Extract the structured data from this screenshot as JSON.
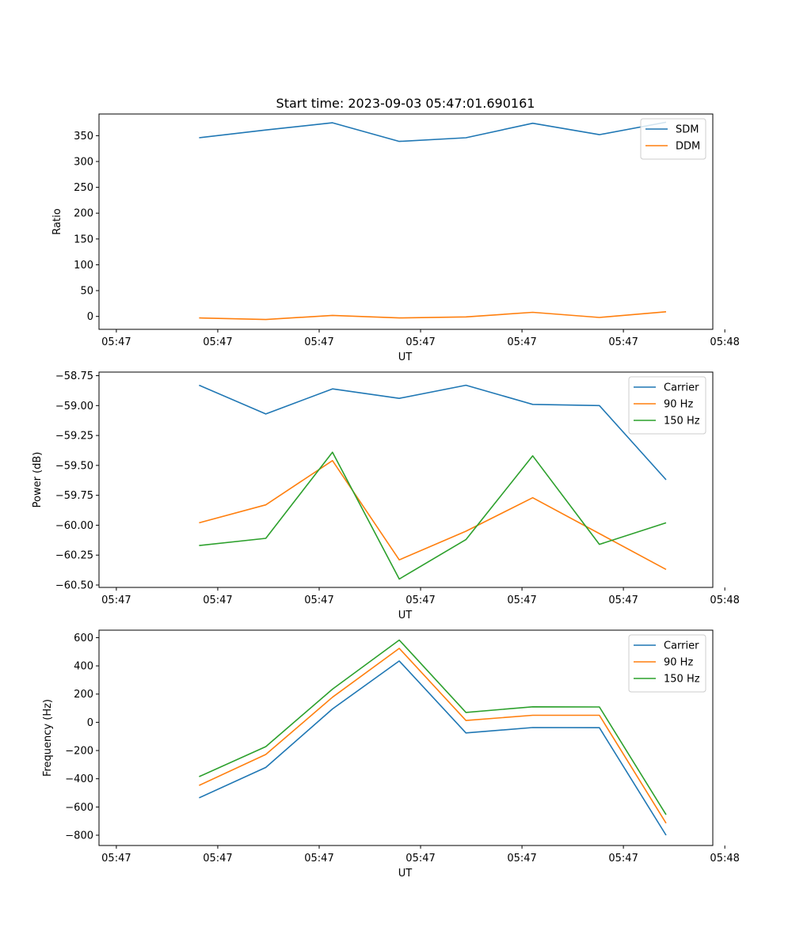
{
  "title": "Start time: 2023-09-03 05:47:01.690161",
  "chart_data": [
    {
      "type": "line",
      "title": "Start time: 2023-09-03 05:47:01.690161",
      "xlabel": "UT",
      "ylabel": "Ratio",
      "ylim": [
        -25,
        392
      ],
      "yticks": [
        0,
        50,
        100,
        150,
        200,
        250,
        300,
        350
      ],
      "ytick_labels": [
        "0",
        "50",
        "100",
        "150",
        "200",
        "250",
        "300",
        "350"
      ],
      "xlim": [
        -1.5,
        7.7
      ],
      "xticks": [
        -1.24,
        0.28,
        1.8,
        3.32,
        4.84,
        6.36,
        7.88
      ],
      "xtick_labels": [
        "05:47",
        "05:47",
        "05:47",
        "05:47",
        "05:47",
        "05:47",
        "05:48"
      ],
      "x": [
        0,
        1,
        2,
        3,
        4,
        5,
        6,
        7
      ],
      "legend_position": "top-right",
      "series": [
        {
          "name": "SDM",
          "color": "#1f77b4",
          "values": [
            346,
            361,
            375,
            339,
            346,
            374,
            352,
            376
          ]
        },
        {
          "name": "DDM",
          "color": "#ff7f0e",
          "values": [
            -3,
            -6,
            2,
            -3,
            -1,
            8,
            -2,
            9
          ]
        }
      ]
    },
    {
      "type": "line",
      "title": "",
      "xlabel": "UT",
      "ylabel": "Power (dB)",
      "ylim": [
        -60.52,
        -58.72
      ],
      "yticks": [
        -60.5,
        -60.25,
        -60.0,
        -59.75,
        -59.5,
        -59.25,
        -59.0,
        -58.75
      ],
      "ytick_labels": [
        "−60.50",
        "−60.25",
        "−60.00",
        "−59.75",
        "−59.50",
        "−59.25",
        "−59.00",
        "−58.75"
      ],
      "xlim": [
        -1.5,
        7.7
      ],
      "xticks": [
        -1.24,
        0.28,
        1.8,
        3.32,
        4.84,
        6.36,
        7.88
      ],
      "xtick_labels": [
        "05:47",
        "05:47",
        "05:47",
        "05:47",
        "05:47",
        "05:47",
        "05:48"
      ],
      "x": [
        0,
        1,
        2,
        3,
        4,
        5,
        6,
        7
      ],
      "legend_position": "top-right",
      "series": [
        {
          "name": "Carrier",
          "color": "#1f77b4",
          "values": [
            -58.83,
            -59.07,
            -58.86,
            -58.94,
            -58.83,
            -58.99,
            -59.0,
            -59.62
          ]
        },
        {
          "name": "90 Hz",
          "color": "#ff7f0e",
          "values": [
            -59.98,
            -59.83,
            -59.46,
            -60.29,
            -60.05,
            -59.77,
            -60.07,
            -60.37
          ]
        },
        {
          "name": "150 Hz",
          "color": "#2ca02c",
          "values": [
            -60.17,
            -60.11,
            -59.39,
            -60.45,
            -60.12,
            -59.42,
            -60.16,
            -59.98
          ]
        }
      ]
    },
    {
      "type": "line",
      "title": "",
      "xlabel": "UT",
      "ylabel": "Frequency (Hz)",
      "ylim": [
        -873,
        653
      ],
      "yticks": [
        -800,
        -600,
        -400,
        -200,
        0,
        200,
        400,
        600
      ],
      "ytick_labels": [
        "−800",
        "−600",
        "−400",
        "−200",
        "0",
        "200",
        "400",
        "600"
      ],
      "xlim": [
        -1.5,
        7.7
      ],
      "xticks": [
        -1.24,
        0.28,
        1.8,
        3.32,
        4.84,
        6.36,
        7.88
      ],
      "xtick_labels": [
        "05:47",
        "05:47",
        "05:47",
        "05:47",
        "05:47",
        "05:47",
        "05:48"
      ],
      "x": [
        0,
        1,
        2,
        3,
        4,
        5,
        6,
        7
      ],
      "legend_position": "top-right",
      "series": [
        {
          "name": "Carrier",
          "color": "#1f77b4",
          "values": [
            -535,
            -320,
            95,
            435,
            -75,
            -37,
            -38,
            -800
          ]
        },
        {
          "name": "90 Hz",
          "color": "#ff7f0e",
          "values": [
            -447,
            -228,
            178,
            524,
            13,
            50,
            50,
            -715
          ]
        },
        {
          "name": "150 Hz",
          "color": "#2ca02c",
          "values": [
            -385,
            -172,
            235,
            583,
            70,
            110,
            109,
            -655
          ]
        }
      ]
    }
  ]
}
